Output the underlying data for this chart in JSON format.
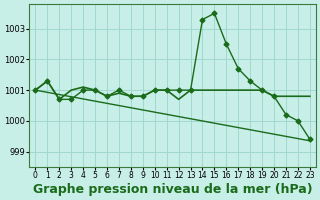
{
  "background_color": "#c8eee8",
  "grid_color": "#a0d8d0",
  "line_color": "#1a6b1a",
  "xlabel": "Graphe pression niveau de la mer (hPa)",
  "xlabel_fontsize": 9,
  "yticks": [
    999,
    1000,
    1001,
    1002,
    1003
  ],
  "ylim": [
    998.5,
    1003.8
  ],
  "xlim": [
    -0.5,
    23.5
  ],
  "xtick_labels": [
    "0",
    "1",
    "2",
    "3",
    "4",
    "5",
    "6",
    "7",
    "8",
    "9",
    "10",
    "11",
    "12",
    "13",
    "14",
    "15",
    "16",
    "17",
    "18",
    "19",
    "20",
    "21",
    "22",
    "23"
  ],
  "line1": {
    "x": [
      0,
      1,
      2,
      3,
      4,
      5,
      6,
      7,
      8,
      9,
      10,
      11,
      12,
      13,
      14,
      15,
      16,
      17,
      18,
      19,
      20,
      21,
      22,
      23
    ],
    "y": [
      1001.0,
      1001.3,
      1000.7,
      1000.7,
      1001.0,
      1001.0,
      1000.8,
      1001.0,
      1000.8,
      1000.8,
      1001.0,
      1001.0,
      1001.0,
      1001.0,
      1003.3,
      1003.5,
      1002.5,
      1001.7,
      1001.3,
      1001.0,
      1000.8,
      1000.2,
      1000.0,
      999.4
    ],
    "marker": "D",
    "markersize": 2.5,
    "linewidth": 1.0
  },
  "line2": {
    "x": [
      0,
      1,
      2,
      3,
      4,
      5,
      6,
      7,
      8,
      9,
      10,
      11,
      12,
      13,
      14,
      15,
      16,
      17,
      18,
      19,
      20,
      21,
      22,
      23
    ],
    "y": [
      1001.0,
      1001.3,
      1000.7,
      1001.0,
      1001.1,
      1001.0,
      1000.8,
      1000.9,
      1000.8,
      1000.8,
      1001.0,
      1001.0,
      1000.7,
      1001.0,
      1001.0,
      1001.0,
      1001.0,
      1001.0,
      1001.0,
      1001.0,
      1000.8,
      1000.8,
      1000.8,
      1000.8
    ],
    "marker": null,
    "markersize": 0,
    "linewidth": 1.2
  },
  "line3": {
    "x": [
      0,
      23
    ],
    "y": [
      1001.0,
      999.35
    ],
    "marker": null,
    "markersize": 0,
    "linewidth": 1.0
  }
}
